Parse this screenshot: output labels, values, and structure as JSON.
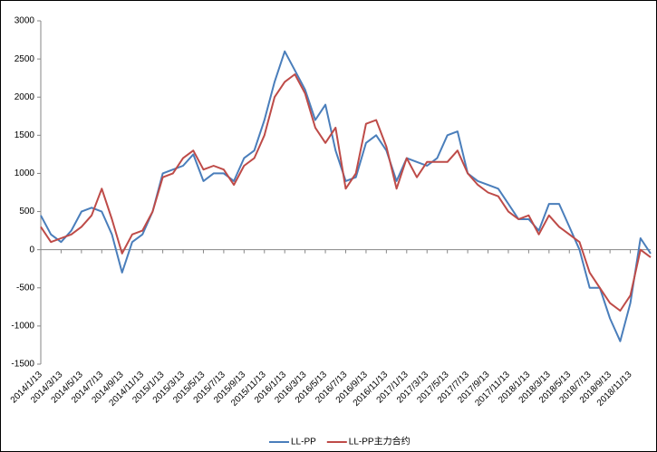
{
  "chart_data": {
    "type": "line",
    "categories": [
      "2014/1/13",
      null,
      "2014/3/13",
      null,
      "2014/5/13",
      null,
      "2014/7/13",
      null,
      "2014/9/13",
      null,
      "2014/11/13",
      null,
      "2015/1/13",
      null,
      "2015/3/13",
      null,
      "2015/5/13",
      null,
      "2015/7/13",
      null,
      "2015/9/13",
      null,
      "2015/11/13",
      null,
      "2016/1/13",
      null,
      "2016/3/13",
      null,
      "2016/5/13",
      null,
      "2016/7/13",
      null,
      "2016/9/13",
      null,
      "2016/11/13",
      null,
      "2017/1/13",
      null,
      "2017/3/13",
      null,
      "2017/5/13",
      null,
      "2017/7/13",
      null,
      "2017/9/13",
      null,
      "2017/11/13",
      null,
      "2018/1/13",
      null,
      "2018/3/13",
      null,
      "2018/5/13",
      null,
      "2018/7/13",
      null,
      "2018/9/13",
      null,
      "2018/11/13",
      null,
      null
    ],
    "series": [
      {
        "name": "LL-PP",
        "color": "#4a7ebb",
        "values": [
          450,
          200,
          100,
          250,
          500,
          550,
          500,
          200,
          -300,
          100,
          200,
          500,
          1000,
          1050,
          1100,
          1250,
          900,
          1000,
          1000,
          900,
          1200,
          1300,
          1700,
          2200,
          2600,
          2350,
          2100,
          1700,
          1900,
          1300,
          900,
          950,
          1400,
          1500,
          1300,
          900,
          1200,
          1150,
          1100,
          1200,
          1500,
          1550,
          1000,
          900,
          850,
          800,
          600,
          400,
          400,
          250,
          600,
          600,
          300,
          0,
          -500,
          -500,
          -900,
          -1200,
          -700,
          150,
          -50
        ]
      },
      {
        "name": "LL-PP主力合约",
        "color": "#be4b48",
        "values": [
          300,
          100,
          150,
          200,
          300,
          450,
          800,
          400,
          -50,
          200,
          250,
          500,
          950,
          1000,
          1200,
          1300,
          1050,
          1100,
          1050,
          850,
          1100,
          1200,
          1500,
          2000,
          2200,
          2300,
          2050,
          1600,
          1400,
          1600,
          800,
          1000,
          1650,
          1700,
          1350,
          800,
          1200,
          950,
          1150,
          1150,
          1150,
          1300,
          1000,
          850,
          750,
          700,
          500,
          400,
          450,
          200,
          450,
          300,
          200,
          100,
          -300,
          -500,
          -700,
          -800,
          -600,
          0,
          -100
        ]
      }
    ],
    "ylim": [
      -1500,
      3000
    ],
    "yticks": [
      3000,
      2500,
      2000,
      1500,
      1000,
      500,
      0,
      -500,
      -1000,
      -1500
    ],
    "grid": false,
    "legend": "bottom"
  }
}
